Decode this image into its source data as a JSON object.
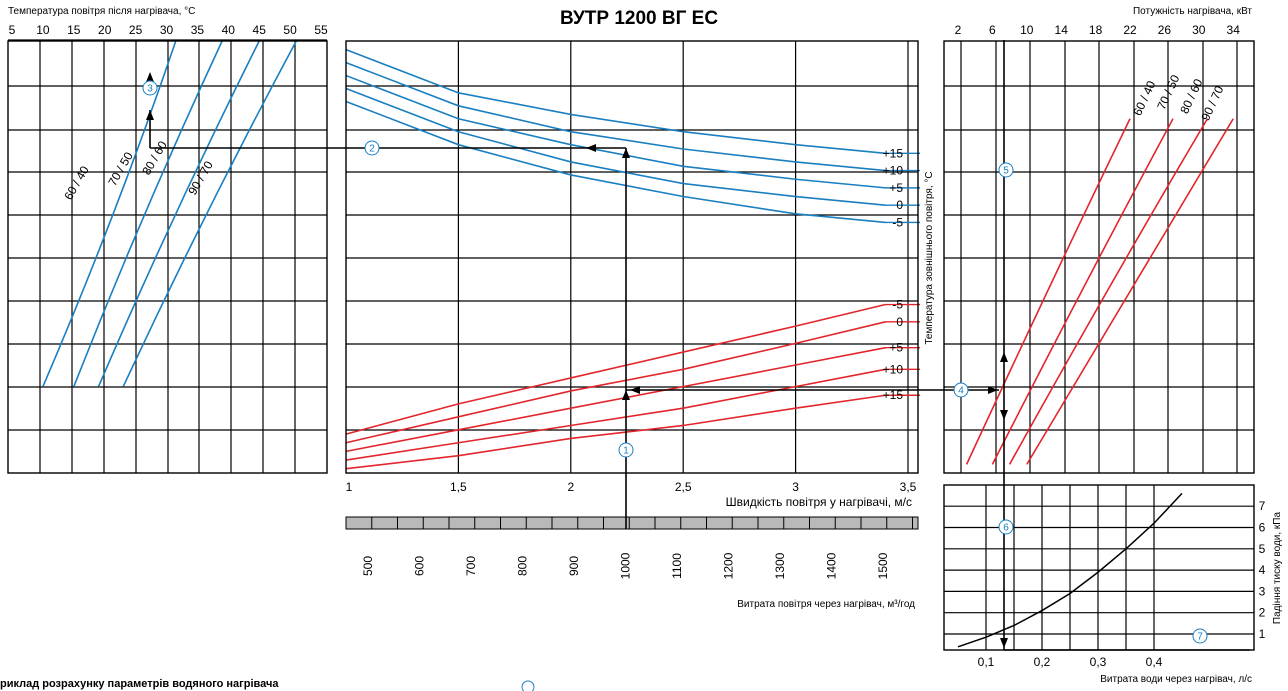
{
  "title": "ВУТР 1200 ВГ ЕС",
  "left_chart": {
    "xlabel": "Температура повітря після нагрівача, °С",
    "ticks": [
      "5",
      "10",
      "15",
      "20",
      "25",
      "30",
      "35",
      "40",
      "45",
      "50",
      "55"
    ],
    "curve_labels": [
      "60 / 40",
      "70 / 50",
      "80 / 60",
      "90 / 70"
    ]
  },
  "middle_chart": {
    "xlabel": "Швидкість повітря у нагрівачі, м/с",
    "ticks": [
      "1",
      "1,5",
      "2",
      "2,5",
      "3",
      "3,5"
    ],
    "blue_labels": [
      "+15",
      "+10",
      "+5",
      "0",
      "-5"
    ],
    "red_labels": [
      "-5",
      "0",
      "+5",
      "+10",
      "+15"
    ]
  },
  "flow_axis": {
    "xlabel": "Витрата повітря через нагрівач, м³/год",
    "ticks": [
      "500",
      "600",
      "700",
      "800",
      "900",
      "1000",
      "1100",
      "1200",
      "1300",
      "1400",
      "1500"
    ]
  },
  "right_chart": {
    "top_label": "Потужність нагрівача, кВт",
    "ticks": [
      "2",
      "6",
      "10",
      "14",
      "18",
      "22",
      "26",
      "30",
      "34"
    ],
    "ylabel": "Температура зовнішнього повітря, °С",
    "curve_labels": [
      "60 / 40",
      "70 / 50",
      "80 / 60",
      "90 / 70"
    ]
  },
  "pressure_chart": {
    "xlabel": "Витрата води через нагрівач, л/с",
    "ylabel": "Падіння тиску води, кПа",
    "xticks": [
      "0,1",
      "0,2",
      "0,3",
      "0,4"
    ],
    "yticks": [
      "1",
      "2",
      "3",
      "4",
      "5",
      "6",
      "7"
    ]
  },
  "example_label": "риклад розрахунку параметрів водяного нагрівача",
  "steps": [
    "1",
    "2",
    "3",
    "4",
    "5",
    "6",
    "7"
  ],
  "colors": {
    "blue": "#1a7fc1",
    "red": "#e3262b",
    "grid": "#000000",
    "band": "#b9b9b9"
  },
  "chart_data": [
    {
      "type": "line",
      "title": "Температура повітря після нагрівача, °С",
      "x_ticks": [
        5,
        10,
        15,
        20,
        25,
        30,
        35,
        40,
        45,
        50,
        55
      ],
      "series": [
        {
          "name": "60 / 40",
          "x": [
            10,
            22,
            31.5
          ],
          "y": [
            0.2,
            0.6,
            1.0
          ]
        },
        {
          "name": "70 / 50",
          "x": [
            15,
            26,
            39
          ],
          "y": [
            0.2,
            0.6,
            1.0
          ]
        },
        {
          "name": "80 / 60",
          "x": [
            19,
            31,
            45
          ],
          "y": [
            0.2,
            0.6,
            1.0
          ]
        },
        {
          "name": "90 / 70",
          "x": [
            23,
            36,
            51
          ],
          "y": [
            0.2,
            0.6,
            1.0
          ]
        }
      ]
    },
    {
      "type": "line",
      "title": "Швидкість повітря у нагрівачі, м/с",
      "x_ticks": [
        "1",
        "1,5",
        "2",
        "2,5",
        "3",
        "3,5"
      ],
      "xlim": [
        1,
        3.5
      ],
      "series": [
        {
          "name": "+15",
          "color": "blue",
          "x": [
            1,
            1.5,
            2,
            2.5,
            3,
            3.4
          ],
          "y": [
            0.98,
            0.88,
            0.83,
            0.79,
            0.76,
            0.74
          ]
        },
        {
          "name": "+10",
          "color": "blue",
          "x": [
            1,
            1.5,
            2,
            2.5,
            3,
            3.4
          ],
          "y": [
            0.95,
            0.85,
            0.79,
            0.75,
            0.72,
            0.7
          ]
        },
        {
          "name": "+5",
          "color": "blue",
          "x": [
            1,
            1.5,
            2,
            2.5,
            3,
            3.4
          ],
          "y": [
            0.92,
            0.82,
            0.76,
            0.71,
            0.68,
            0.66
          ]
        },
        {
          "name": "0",
          "color": "blue",
          "x": [
            1,
            1.5,
            2,
            2.5,
            3,
            3.4
          ],
          "y": [
            0.89,
            0.79,
            0.72,
            0.67,
            0.64,
            0.62
          ]
        },
        {
          "name": "-5",
          "color": "blue",
          "x": [
            1,
            1.5,
            2,
            2.5,
            3,
            3.4
          ],
          "y": [
            0.86,
            0.76,
            0.69,
            0.64,
            0.6,
            0.58
          ]
        },
        {
          "name": "-5",
          "color": "red",
          "x": [
            1,
            1.5,
            2,
            2.5,
            3,
            3.4
          ],
          "y": [
            0.09,
            0.16,
            0.22,
            0.28,
            0.34,
            0.39
          ]
        },
        {
          "name": "0",
          "color": "red",
          "x": [
            1,
            1.5,
            2,
            2.5,
            3,
            3.4
          ],
          "y": [
            0.07,
            0.13,
            0.19,
            0.24,
            0.3,
            0.35
          ]
        },
        {
          "name": "+5",
          "color": "red",
          "x": [
            1,
            1.5,
            2,
            2.5,
            3,
            3.4
          ],
          "y": [
            0.05,
            0.1,
            0.15,
            0.2,
            0.25,
            0.29
          ]
        },
        {
          "name": "+10",
          "color": "red",
          "x": [
            1,
            1.5,
            2,
            2.5,
            3,
            3.4
          ],
          "y": [
            0.03,
            0.07,
            0.11,
            0.15,
            0.2,
            0.24
          ]
        },
        {
          "name": "+15",
          "color": "red",
          "x": [
            1,
            1.5,
            2,
            2.5,
            3,
            3.4
          ],
          "y": [
            0.01,
            0.04,
            0.08,
            0.11,
            0.15,
            0.18
          ]
        }
      ]
    },
    {
      "type": "line",
      "title": "Потужність нагрівача, кВт",
      "x_ticks": [
        2,
        6,
        10,
        14,
        18,
        22,
        26,
        30,
        34
      ],
      "series": [
        {
          "name": "60 / 40",
          "x": [
            3,
            13,
            22
          ],
          "y": [
            0.02,
            0.45,
            0.82
          ]
        },
        {
          "name": "70 / 50",
          "x": [
            6,
            17,
            27
          ],
          "y": [
            0.02,
            0.45,
            0.82
          ]
        },
        {
          "name": "80 / 60",
          "x": [
            8,
            20,
            31
          ],
          "y": [
            0.02,
            0.45,
            0.82
          ]
        },
        {
          "name": "90 / 70",
          "x": [
            10,
            23,
            34
          ],
          "y": [
            0.02,
            0.45,
            0.82
          ]
        }
      ]
    },
    {
      "type": "line",
      "title": "Падіння тиску води, кПа",
      "xlabel": "Витрата води через нагрівач, л/с",
      "ylabel": "Падіння тиску води, кПа",
      "x_ticks": [
        "0,1",
        "0,2",
        "0,3",
        "0,4"
      ],
      "y_ticks": [
        1,
        2,
        3,
        4,
        5,
        6,
        7
      ],
      "series": [
        {
          "name": "",
          "x": [
            0.05,
            0.1,
            0.15,
            0.2,
            0.25,
            0.3,
            0.35,
            0.4,
            0.45
          ],
          "y": [
            0.4,
            0.85,
            1.4,
            2.1,
            2.9,
            3.9,
            5.0,
            6.2,
            7.6
          ]
        }
      ]
    }
  ]
}
